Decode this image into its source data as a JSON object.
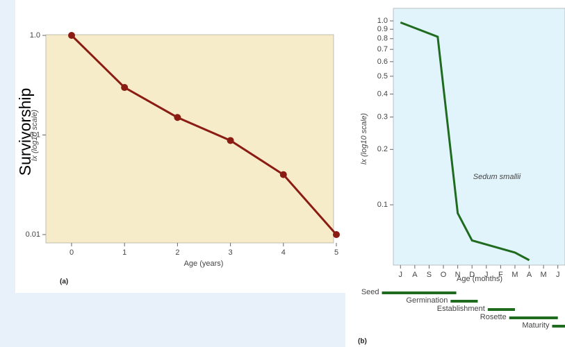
{
  "side_label": "Survivorship",
  "chart_data": [
    {
      "type": "line",
      "panel": "(a)",
      "xlabel": "Age (years)",
      "ylabel": "lx (log10 scale)",
      "log_y": true,
      "x": [
        0,
        1,
        2,
        3,
        4,
        5
      ],
      "xlim": [
        0,
        5
      ],
      "xticks": [
        0,
        1,
        2,
        3,
        4,
        5
      ],
      "ylim": [
        0.01,
        1
      ],
      "yticks": [
        0.01,
        0.1,
        {
          "value": 1,
          "label": "1.0"
        }
      ],
      "series": [
        {
          "color": "#8b1c13",
          "values": [
            1.0,
            0.3,
            0.15,
            0.088,
            0.04,
            0.01
          ]
        }
      ]
    },
    {
      "type": "line",
      "panel": "(b)",
      "xlabel": "Age (months)",
      "ylabel": "lx (log10 scale)",
      "log_y": true,
      "annotation": "Sedum smallii",
      "x": [
        0,
        2.6,
        4,
        5,
        8,
        9
      ],
      "xlim": [
        -0.5,
        11.5
      ],
      "xticks": [
        {
          "value": 0,
          "label": "J"
        },
        {
          "value": 1,
          "label": "A"
        },
        {
          "value": 2,
          "label": "S"
        },
        {
          "value": 3,
          "label": "O"
        },
        {
          "value": 4,
          "label": "N"
        },
        {
          "value": 5,
          "label": "D"
        },
        {
          "value": 6,
          "label": "J"
        },
        {
          "value": 7,
          "label": "F"
        },
        {
          "value": 8,
          "label": "M"
        },
        {
          "value": 9,
          "label": "A"
        },
        {
          "value": 10,
          "label": "M"
        },
        {
          "value": 11,
          "label": "J"
        }
      ],
      "ylim": [
        0.047,
        1.17
      ],
      "yticks": [
        0.1,
        0.2,
        0.3,
        0.4,
        0.5,
        0.6,
        0.7,
        0.8,
        0.9,
        {
          "value": 1,
          "label": "1.0"
        }
      ],
      "series": [
        {
          "color": "#1f6b1f",
          "values": [
            0.98,
            0.82,
            0.09,
            0.064,
            0.055,
            0.05
          ]
        }
      ],
      "stages": [
        {
          "label": "Seed",
          "start": -1.3,
          "end": 3.9
        },
        {
          "label": "Germination",
          "start": 3.5,
          "end": 5.4
        },
        {
          "label": "Establishment",
          "start": 6.1,
          "end": 8
        },
        {
          "label": "Rosette",
          "start": 7.6,
          "end": 11
        },
        {
          "label": "Maturity",
          "start": 10.6,
          "end": 11.5
        }
      ]
    }
  ]
}
